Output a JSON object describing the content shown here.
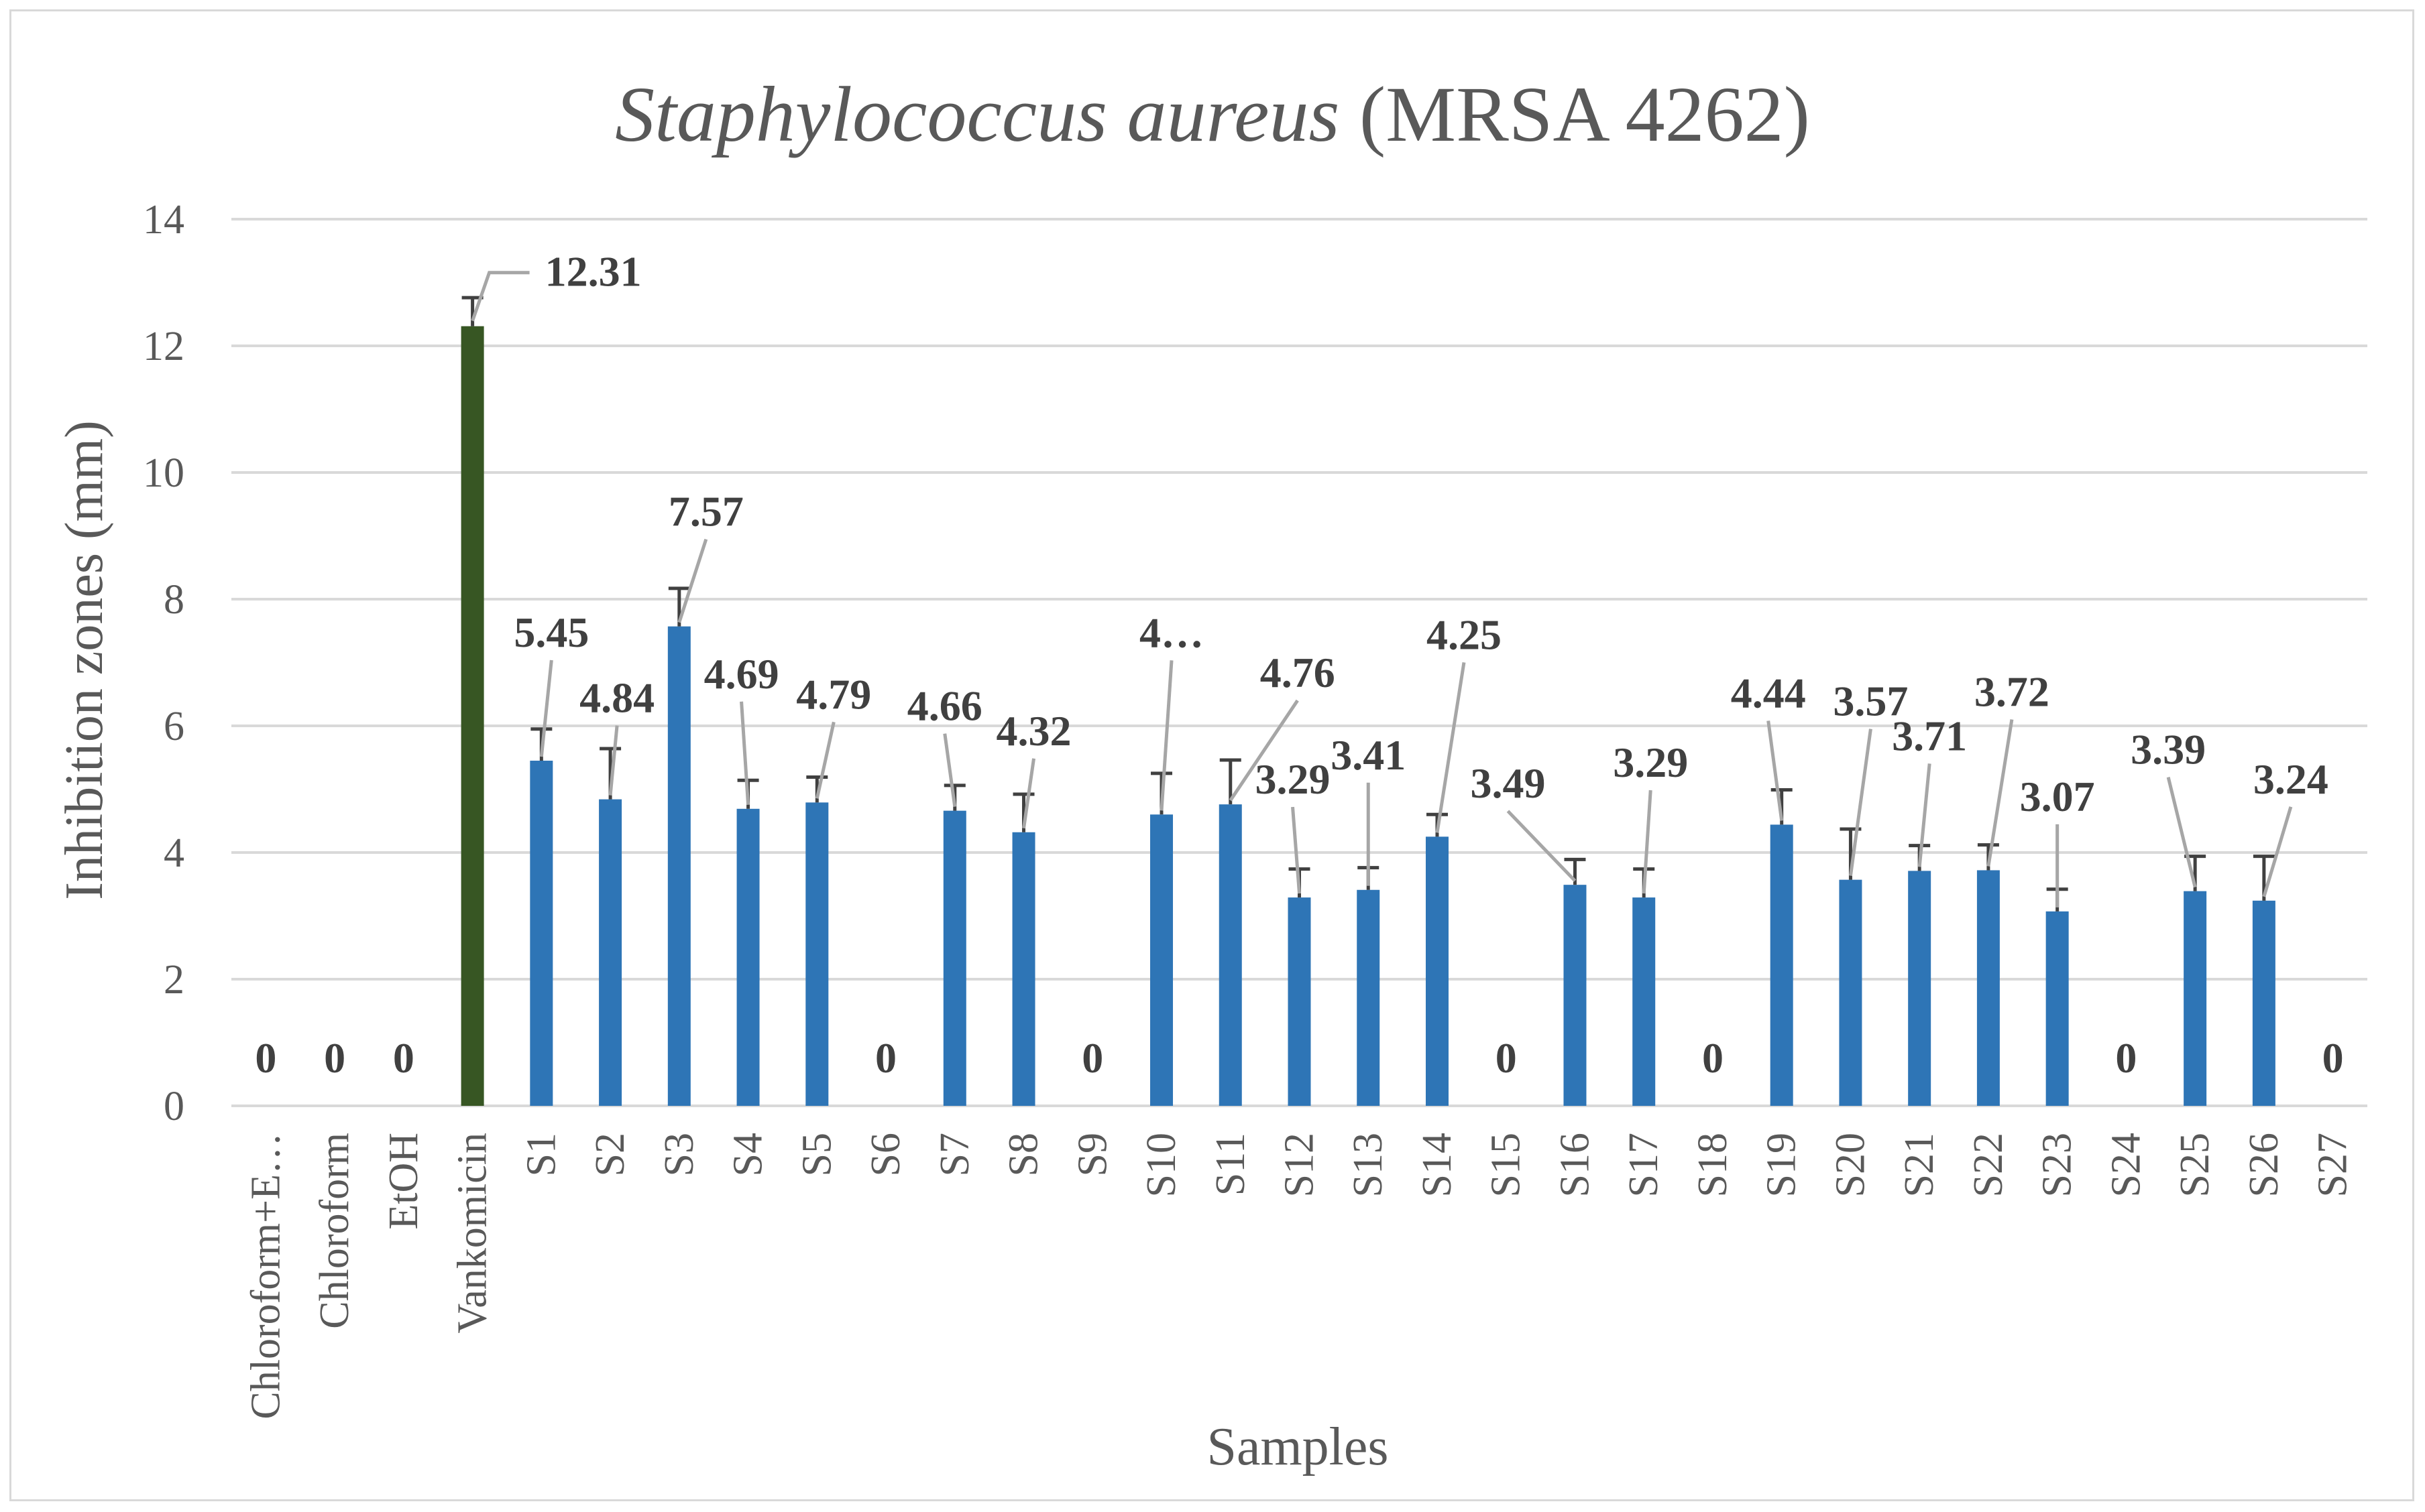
{
  "chart_data": {
    "type": "bar",
    "title_italic": "Staphylococcus aureus",
    "title_rest": " (MRSA 4262)",
    "xlabel": "Samples",
    "ylabel": "Inhibition zones (mm)",
    "ylim": [
      0,
      14
    ],
    "yticks": [
      "0",
      "2",
      "4",
      "6",
      "8",
      "10",
      "12",
      "14"
    ],
    "grid": true,
    "categories": [
      "Chloroform+E…",
      "Chloroform",
      "EtOH",
      "Vankomicin",
      "S1",
      "S2",
      "S3",
      "S4",
      "S5",
      "S6",
      "S7",
      "S8",
      "S9",
      "S10",
      "S11",
      "S12",
      "S13",
      "S14",
      "S15",
      "S16",
      "S17",
      "S18",
      "S19",
      "S20",
      "S21",
      "S22",
      "S23",
      "S24",
      "S25",
      "S26",
      "S27"
    ],
    "values": [
      0,
      0,
      0,
      12.31,
      5.45,
      4.84,
      7.57,
      4.69,
      4.79,
      0,
      4.66,
      4.32,
      0,
      4.6,
      4.76,
      3.29,
      3.41,
      4.25,
      0,
      3.49,
      3.29,
      0,
      4.44,
      3.57,
      3.71,
      3.72,
      3.07,
      0,
      3.39,
      3.24,
      0
    ],
    "errors": [
      0,
      0,
      0,
      0.45,
      0.5,
      0.8,
      0.6,
      0.45,
      0.4,
      0,
      0.4,
      0.6,
      0,
      0.65,
      0.7,
      0.45,
      0.35,
      0.35,
      0,
      0.4,
      0.45,
      0,
      0.55,
      0.8,
      0.4,
      0.4,
      0.35,
      0,
      0.55,
      0.7,
      0
    ],
    "data_labels": [
      "0",
      "0",
      "0",
      "12.31",
      "5.45",
      "4.84",
      "7.57",
      "4.69",
      "4.79",
      "0",
      "4.66",
      "4.32",
      "0",
      "4…",
      "4.76",
      "3.29",
      "3.41",
      "4.25",
      "0",
      "3.49",
      "3.29",
      "0",
      "4.44",
      "3.57",
      "3.71",
      "3.72",
      "3.07",
      "0",
      "3.39",
      "3.24",
      "0"
    ],
    "colors": {
      "control": "#375623",
      "sample": "#2e75b6"
    },
    "control_index": 3
  }
}
